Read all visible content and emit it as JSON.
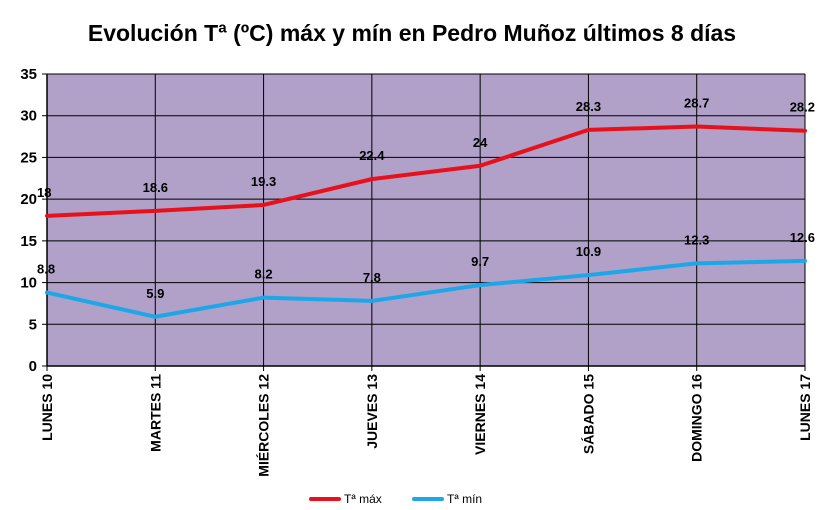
{
  "chart_data": {
    "type": "line",
    "title": "Evolución Tª (ºC) máx y mín en Pedro Muñoz últimos 8 días",
    "categories": [
      "LUNES 10",
      "MARTES 11",
      "MIÉRCOLES 12",
      "JUEVES 13",
      "VIERNES 14",
      "SÁBADO 15",
      "DOMINGO 16",
      "LUNES 17"
    ],
    "series": [
      {
        "name": "Tª máx",
        "values": [
          18,
          18.6,
          19.3,
          22.4,
          24,
          28.3,
          28.7,
          28.2
        ],
        "color": "#e8101a"
      },
      {
        "name": "Tª mín",
        "values": [
          8.8,
          5.9,
          8.2,
          7.8,
          9.7,
          10.9,
          12.3,
          12.6
        ],
        "color": "#1ca8e8"
      }
    ],
    "ylim": [
      0,
      35
    ],
    "yticks": [
      0,
      5,
      10,
      15,
      20,
      25,
      30,
      35
    ],
    "grid": true,
    "legend": "bottom",
    "plot_background": "#b1a0c7"
  }
}
